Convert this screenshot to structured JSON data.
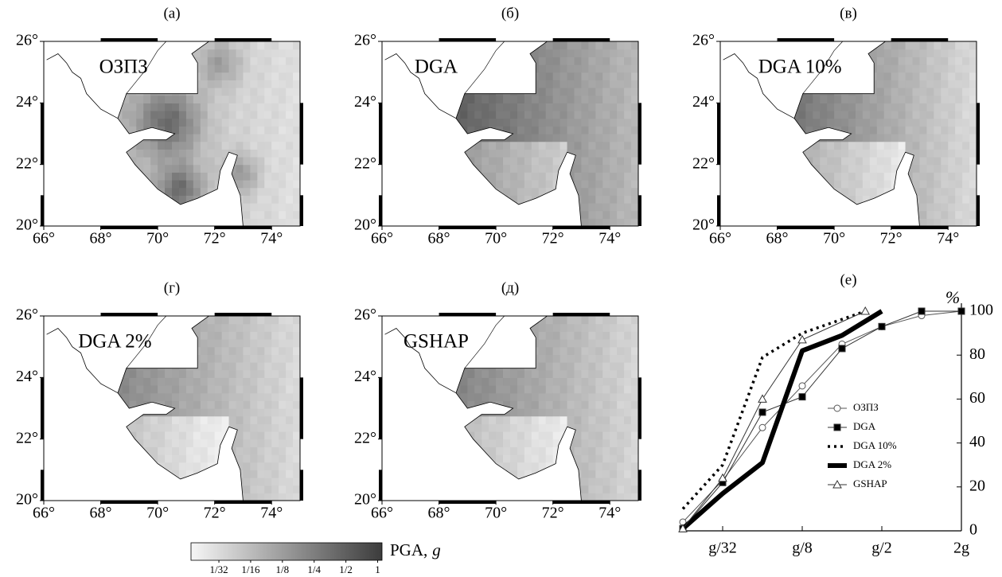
{
  "chart_data": [
    {
      "type": "map",
      "title": "(a)",
      "annotation": "ОЗПЗ",
      "xlim": [
        66,
        75
      ],
      "ylim": [
        20,
        26
      ],
      "xticks": [
        {
          "value": 66,
          "label": "66°"
        },
        {
          "value": 68,
          "label": "68°"
        },
        {
          "value": 70,
          "label": "70°"
        },
        {
          "value": 72,
          "label": "72°"
        },
        {
          "value": 74,
          "label": "74°"
        }
      ],
      "yticks": [
        {
          "value": 20,
          "label": "20°"
        },
        {
          "value": 22,
          "label": "22°"
        },
        {
          "value": 24,
          "label": "24°"
        },
        {
          "value": 26,
          "label": "26°"
        }
      ]
    },
    {
      "type": "map",
      "title": "(б)",
      "annotation": "DGA",
      "xlim": [
        66,
        75
      ],
      "ylim": [
        20,
        26
      ],
      "xticks": [
        {
          "value": 66,
          "label": "66°"
        },
        {
          "value": 68,
          "label": "68°"
        },
        {
          "value": 70,
          "label": "70°"
        },
        {
          "value": 72,
          "label": "72°"
        },
        {
          "value": 74,
          "label": "74°"
        }
      ],
      "yticks": [
        {
          "value": 20,
          "label": "20°"
        },
        {
          "value": 22,
          "label": "22°"
        },
        {
          "value": 24,
          "label": "24°"
        },
        {
          "value": 26,
          "label": "26°"
        }
      ]
    },
    {
      "type": "map",
      "title": "(в)",
      "annotation": "DGA 10%",
      "xlim": [
        66,
        75
      ],
      "ylim": [
        20,
        26
      ],
      "xticks": [
        {
          "value": 66,
          "label": "66°"
        },
        {
          "value": 68,
          "label": "68°"
        },
        {
          "value": 70,
          "label": "70°"
        },
        {
          "value": 72,
          "label": "72°"
        },
        {
          "value": 74,
          "label": "74°"
        }
      ],
      "yticks": [
        {
          "value": 20,
          "label": "20°"
        },
        {
          "value": 22,
          "label": "22°"
        },
        {
          "value": 24,
          "label": "24°"
        },
        {
          "value": 26,
          "label": "26°"
        }
      ]
    },
    {
      "type": "map",
      "title": "(г)",
      "annotation": "DGA 2%",
      "xlim": [
        66,
        75
      ],
      "ylim": [
        20,
        26
      ],
      "xticks": [
        {
          "value": 66,
          "label": "66°"
        },
        {
          "value": 68,
          "label": "68°"
        },
        {
          "value": 70,
          "label": "70°"
        },
        {
          "value": 72,
          "label": "72°"
        },
        {
          "value": 74,
          "label": "74°"
        }
      ],
      "yticks": [
        {
          "value": 20,
          "label": "20°"
        },
        {
          "value": 22,
          "label": "22°"
        },
        {
          "value": 24,
          "label": "24°"
        },
        {
          "value": 26,
          "label": "26°"
        }
      ]
    },
    {
      "type": "map",
      "title": "(д)",
      "annotation": "GSHAP",
      "xlim": [
        66,
        75
      ],
      "ylim": [
        20,
        26
      ],
      "xticks": [
        {
          "value": 66,
          "label": "66°"
        },
        {
          "value": 68,
          "label": "68°"
        },
        {
          "value": 70,
          "label": "70°"
        },
        {
          "value": 72,
          "label": "72°"
        },
        {
          "value": 74,
          "label": "74°"
        }
      ],
      "yticks": [
        {
          "value": 20,
          "label": "20°"
        },
        {
          "value": 22,
          "label": "22°"
        },
        {
          "value": 24,
          "label": "24°"
        },
        {
          "value": 26,
          "label": "26°"
        }
      ]
    },
    {
      "type": "line",
      "title": "(e)",
      "ylabel": "%",
      "xscale": "log",
      "xlim": [
        0.015625,
        2
      ],
      "ylim": [
        0,
        100
      ],
      "xticks": [
        {
          "value": 0.03125,
          "label": "g/32"
        },
        {
          "value": 0.125,
          "label": "g/8"
        },
        {
          "value": 0.5,
          "label": "g/2"
        },
        {
          "value": 2,
          "label": "2g"
        }
      ],
      "yticks": [
        0,
        20,
        40,
        60,
        80,
        100
      ],
      "series": [
        {
          "name": "ОЗПЗ",
          "color": "#555555",
          "marker": "circle",
          "x": [
            0.015625,
            0.03125,
            0.0625,
            0.125,
            0.25,
            0.5,
            1,
            2
          ],
          "values": [
            4,
            23,
            47,
            66,
            85,
            93,
            98,
            100
          ]
        },
        {
          "name": "DGA",
          "color": "#333333",
          "marker": "square",
          "x": [
            0.015625,
            0.03125,
            0.0625,
            0.125,
            0.25,
            0.5,
            1,
            2
          ],
          "values": [
            1,
            22,
            54,
            61,
            83,
            93,
            100,
            100
          ]
        },
        {
          "name": "DGA 10%",
          "color": "#000000",
          "marker": "dotted",
          "x": [
            0.015625,
            0.03125,
            0.0625,
            0.125,
            0.375
          ],
          "values": [
            10,
            30,
            79,
            90,
            100
          ]
        },
        {
          "name": "DGA 2%",
          "color": "#000000",
          "marker": "thick",
          "x": [
            0.015625,
            0.03125,
            0.0625,
            0.125,
            0.25,
            0.5
          ],
          "values": [
            1,
            17,
            31,
            82,
            89,
            100
          ]
        },
        {
          "name": "GSHAP",
          "color": "#333333",
          "marker": "triangle",
          "x": [
            0.015625,
            0.03125,
            0.0625,
            0.125,
            0.375
          ],
          "values": [
            1,
            24,
            60,
            87,
            100
          ]
        }
      ]
    },
    {
      "type": "colorbar",
      "label": "PGA,",
      "unit": "g",
      "clim": [
        0.017,
        1.1
      ],
      "scale": "log",
      "ticks": [
        {
          "value": 0.03125,
          "label": "1/32"
        },
        {
          "value": 0.0625,
          "label": "1/16"
        },
        {
          "value": 0.125,
          "label": "1/8"
        },
        {
          "value": 0.25,
          "label": "1/4"
        },
        {
          "value": 0.5,
          "label": "1/2"
        },
        1
      ]
    }
  ]
}
